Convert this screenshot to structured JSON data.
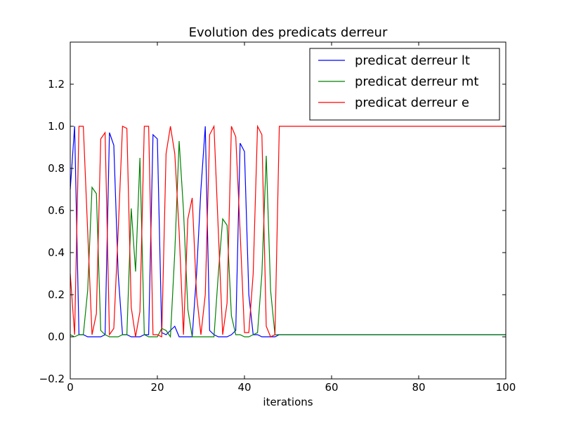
{
  "chart_data": {
    "type": "line",
    "title": "Evolution des predicats derreur",
    "xlabel": "iterations",
    "ylabel": "",
    "xlim": [
      0,
      100
    ],
    "ylim": [
      -0.2,
      1.4
    ],
    "xticks": [
      0,
      20,
      40,
      60,
      80,
      100
    ],
    "yticks": [
      -0.2,
      0.0,
      0.2,
      0.4,
      0.6,
      0.8,
      1.0,
      1.2
    ],
    "grid": false,
    "legend_position": "top-right",
    "series": [
      {
        "name": "predicat derreur lt",
        "color": "#0000ff",
        "x": [
          0,
          1,
          2,
          3,
          4,
          5,
          6,
          7,
          8,
          9,
          10,
          11,
          12,
          13,
          14,
          15,
          16,
          17,
          18,
          19,
          20,
          21,
          22,
          23,
          24,
          25,
          26,
          27,
          28,
          29,
          30,
          31,
          32,
          33,
          34,
          35,
          36,
          37,
          38,
          39,
          40,
          41,
          42,
          43,
          44,
          45,
          46,
          47,
          48,
          100
        ],
        "y": [
          0.7,
          1.0,
          0.01,
          0.01,
          0.0,
          0.0,
          0.0,
          0.0,
          0.01,
          0.97,
          0.91,
          0.3,
          0.01,
          0.01,
          0.0,
          0.0,
          0.0,
          0.01,
          0.01,
          0.96,
          0.94,
          0.02,
          0.01,
          0.03,
          0.05,
          0.0,
          0.0,
          0.0,
          0.0,
          0.3,
          0.7,
          1.0,
          0.03,
          0.01,
          0.0,
          0.0,
          0.0,
          0.01,
          0.03,
          0.92,
          0.88,
          0.2,
          0.01,
          0.01,
          0.0,
          0.0,
          0.0,
          0.0,
          0.01,
          0.01
        ]
      },
      {
        "name": "predicat derreur mt",
        "color": "#008000",
        "x": [
          0,
          1,
          2,
          3,
          4,
          5,
          6,
          7,
          8,
          9,
          10,
          11,
          12,
          13,
          14,
          15,
          16,
          17,
          18,
          19,
          20,
          21,
          22,
          23,
          24,
          25,
          26,
          27,
          28,
          29,
          30,
          31,
          32,
          33,
          34,
          35,
          36,
          37,
          38,
          39,
          40,
          41,
          42,
          43,
          44,
          45,
          46,
          47,
          48,
          100
        ],
        "y": [
          0.01,
          0.0,
          0.01,
          0.01,
          0.22,
          0.71,
          0.68,
          0.03,
          0.01,
          0.0,
          0.0,
          0.0,
          0.01,
          0.01,
          0.61,
          0.31,
          0.85,
          0.01,
          0.0,
          0.0,
          0.0,
          0.04,
          0.03,
          0.0,
          0.4,
          0.93,
          0.6,
          0.13,
          0.0,
          0.0,
          0.0,
          0.0,
          0.0,
          0.0,
          0.3,
          0.56,
          0.53,
          0.1,
          0.01,
          0.01,
          0.0,
          0.0,
          0.01,
          0.02,
          0.3,
          0.86,
          0.22,
          0.01,
          0.01,
          0.01
        ]
      },
      {
        "name": "predicat derreur e",
        "color": "#ff0000",
        "x": [
          0,
          1,
          2,
          3,
          4,
          5,
          6,
          7,
          8,
          9,
          10,
          11,
          12,
          13,
          14,
          15,
          16,
          17,
          18,
          19,
          20,
          21,
          22,
          23,
          24,
          25,
          26,
          27,
          28,
          29,
          30,
          31,
          32,
          33,
          34,
          35,
          36,
          37,
          38,
          39,
          40,
          41,
          42,
          43,
          44,
          45,
          46,
          47,
          48,
          100
        ],
        "y": [
          0.3,
          0.01,
          1.0,
          1.0,
          0.5,
          0.01,
          0.11,
          0.94,
          0.97,
          0.01,
          0.04,
          0.5,
          1.0,
          0.99,
          0.14,
          0.0,
          0.12,
          1.0,
          1.0,
          0.01,
          0.01,
          0.0,
          0.87,
          1.0,
          0.87,
          0.5,
          0.01,
          0.56,
          0.66,
          0.2,
          0.01,
          0.2,
          0.96,
          1.0,
          0.5,
          0.01,
          0.16,
          1.0,
          0.95,
          0.5,
          0.02,
          0.02,
          0.3,
          1.0,
          0.96,
          0.05,
          0.0,
          0.01,
          1.0,
          1.0
        ]
      }
    ]
  }
}
